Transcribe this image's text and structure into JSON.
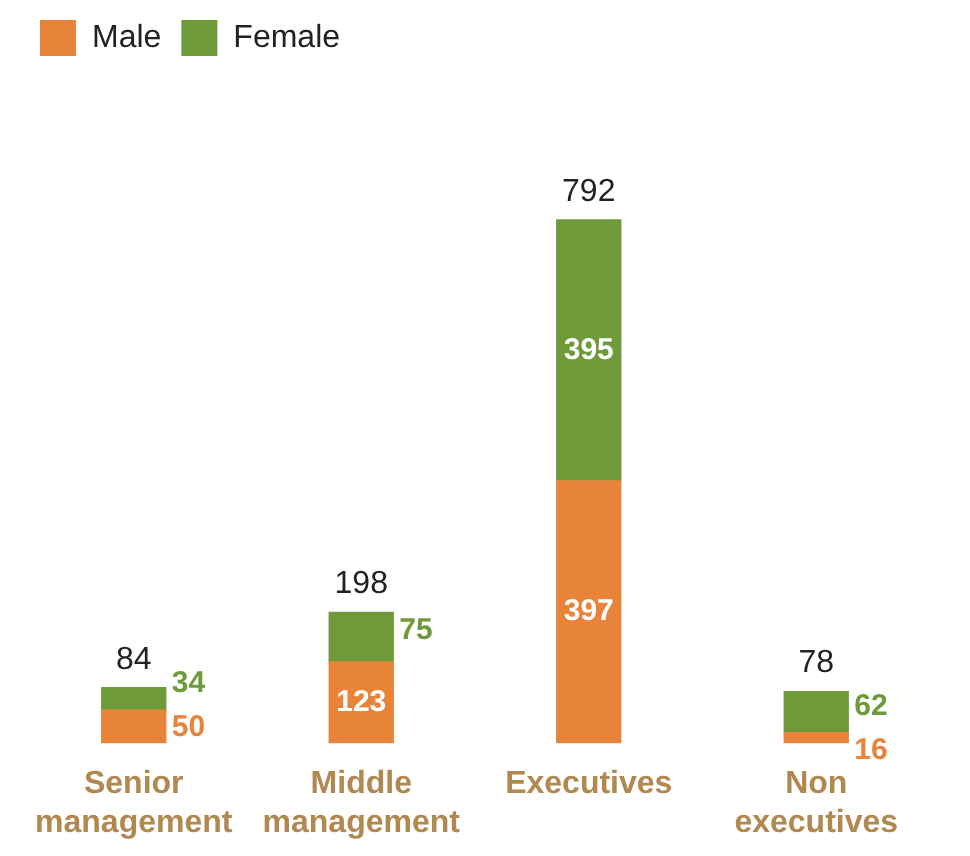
{
  "chart_data": {
    "type": "bar",
    "stacked": true,
    "categories": [
      "Senior management",
      "Middle management",
      "Executives",
      "Non executives"
    ],
    "series": [
      {
        "name": "Male",
        "color": "#e8843a",
        "values": [
          50,
          123,
          397,
          16
        ]
      },
      {
        "name": "Female",
        "color": "#6e9a3a",
        "values": [
          34,
          75,
          395,
          62
        ]
      }
    ],
    "totals": [
      "84",
      "198",
      "792",
      "78"
    ],
    "data_labels": true,
    "legend": "top left",
    "grid": false
  }
}
